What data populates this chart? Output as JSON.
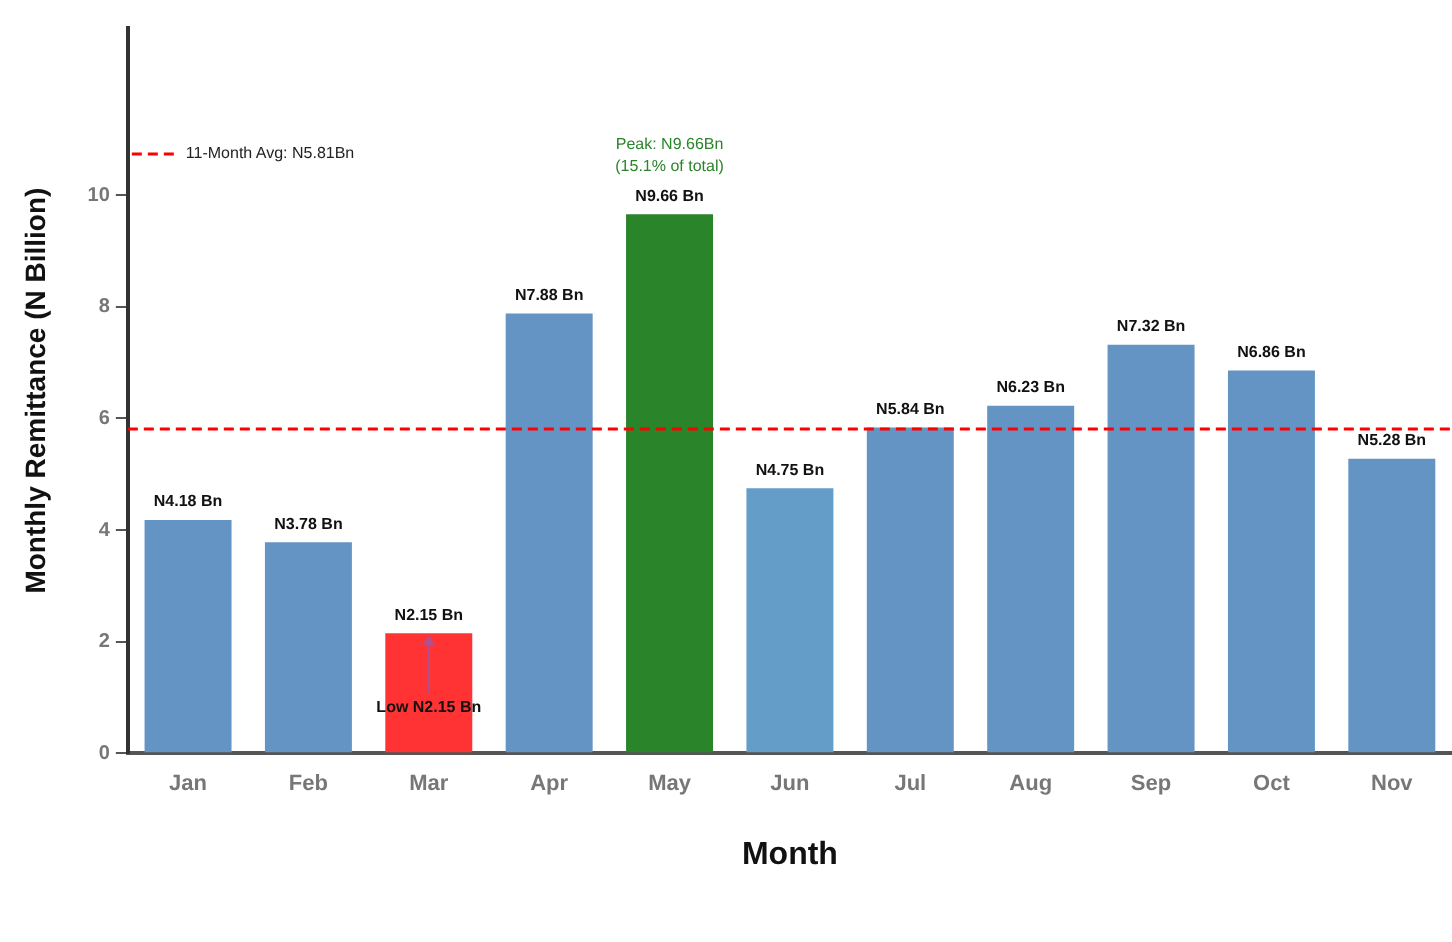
{
  "chart_data": {
    "type": "bar",
    "xlabel": "Month",
    "ylabel": "Monthly Remittance (N Billion)",
    "categories": [
      "Jan",
      "Feb",
      "Mar",
      "Apr",
      "May",
      "Jun",
      "Jul",
      "Aug",
      "Sep",
      "Oct",
      "Nov"
    ],
    "values": [
      4.18,
      3.78,
      2.15,
      7.88,
      9.66,
      4.75,
      5.84,
      6.23,
      7.32,
      6.86,
      5.28
    ],
    "colors": [
      "#6394c4",
      "#6394c4",
      "#ff3333",
      "#6394c4",
      "#2a852a",
      "#659dc9",
      "#6394c4",
      "#6394c4",
      "#6394c4",
      "#6394c4",
      "#6394c4"
    ],
    "value_labels": [
      "N4.18 Bn",
      "N3.78 Bn",
      "N2.15 Bn",
      "N7.88 Bn",
      "N9.66 Bn",
      "N4.75 Bn",
      "N5.84 Bn",
      "N6.23 Bn",
      "N7.32 Bn",
      "N6.86 Bn",
      "N5.28 Bn"
    ],
    "ylim": [
      0,
      13
    ],
    "yticks": [
      0,
      2,
      4,
      6,
      8,
      10
    ],
    "ref_lines": [
      {
        "axis": "y",
        "value": 5.81,
        "label": "11-Month Avg: N5.81Bn",
        "color": "#ff0000",
        "line_style": "dashed"
      }
    ],
    "annotations": [
      {
        "text": "Peak: N9.66Bn\n(15.1% of total)",
        "x": "May",
        "y": 9.66
      },
      {
        "text": "Low N2.15 Bn",
        "x": "Mar",
        "y": 2.15
      }
    ],
    "legend": "top left",
    "grid": false
  }
}
